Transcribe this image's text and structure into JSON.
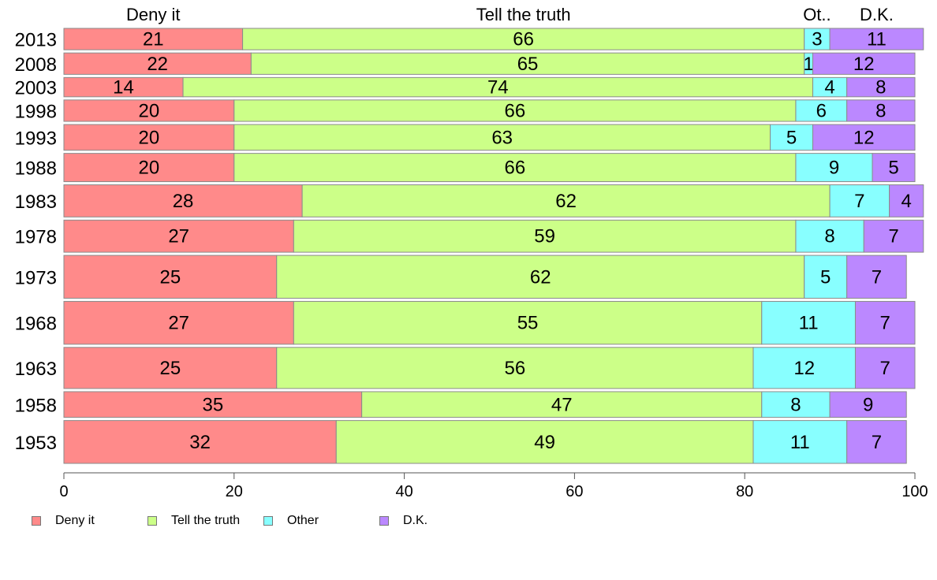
{
  "chart_data": {
    "type": "bar",
    "orientation": "horizontal",
    "stacked": true,
    "title": "",
    "xlabel": "",
    "ylabel": "",
    "xlim": [
      0,
      100
    ],
    "x_ticks": [
      0,
      20,
      40,
      60,
      80,
      100
    ],
    "column_headers": [
      "Deny it",
      "Tell the truth",
      "Ot..",
      "D.K."
    ],
    "categories": [
      "2013",
      "2008",
      "2003",
      "1998",
      "1993",
      "1988",
      "1983",
      "1978",
      "1973",
      "1968",
      "1963",
      "1958",
      "1953"
    ],
    "bar_widths_relative": [
      1,
      1,
      0.9,
      1,
      1.2,
      1.32,
      1.5,
      1.5,
      2,
      2,
      1.92,
      1.2,
      2
    ],
    "series": [
      {
        "name": "Deny it",
        "color": "#ff8a8a",
        "values": [
          21,
          22,
          14,
          20,
          20,
          20,
          28,
          27,
          25,
          27,
          25,
          35,
          32
        ]
      },
      {
        "name": "Tell the truth",
        "color": "#ccff88",
        "values": [
          66,
          65,
          74,
          66,
          63,
          66,
          62,
          59,
          62,
          55,
          56,
          47,
          49
        ]
      },
      {
        "name": "Other",
        "color": "#88ffff",
        "values": [
          3,
          1,
          4,
          6,
          5,
          9,
          7,
          8,
          5,
          11,
          12,
          8,
          11
        ]
      },
      {
        "name": "D.K.",
        "color": "#bb88ff",
        "values": [
          11,
          12,
          8,
          8,
          12,
          5,
          4,
          7,
          7,
          7,
          7,
          9,
          7
        ]
      }
    ],
    "legend_position": "bottom-left",
    "grid": false
  }
}
